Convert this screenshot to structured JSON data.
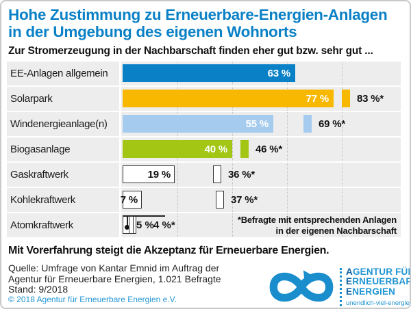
{
  "header": {
    "title_line1": "Hohe Zustimmung zu Erneuerbare-Energien-Anlagen",
    "title_line2": "in der Umgebung des eigenen Wohnorts",
    "subtitle": "Zur Stromerzeugung in der Nachbarschaft finden eher gut bzw. sehr gut ..."
  },
  "chart_data": {
    "type": "bar",
    "orientation": "horizontal",
    "unit": "%",
    "xlim": [
      0,
      100
    ],
    "gridline_step_percent": 20,
    "grid": true,
    "categories": [
      "EE-Anlagen allgemein",
      "Solarpark",
      "Windenergieanlage(n)",
      "Biogasanlage",
      "Gaskraftwerk",
      "Kohlekraftwerk",
      "Atomkraftwerk"
    ],
    "series": [
      {
        "name": "",
        "values": [
          63,
          77,
          55,
          40,
          19,
          7,
          5
        ]
      },
      {
        "name": "Befragte mit entsprechenden Anlagen in der eigenen Nachbarschaft",
        "values": [
          null,
          83,
          69,
          46,
          36,
          37,
          4
        ]
      }
    ],
    "note_line1": "*Befragte mit entsprechenden Anlagen",
    "note_line2": "in der eigenen Nachbarschaft",
    "rows": [
      {
        "label": "EE-Anlagen allgemein",
        "value": 63,
        "value_label": "63 %",
        "color": "#0a81c6",
        "style": "fill"
      },
      {
        "label": "Solarpark",
        "value": 77,
        "value_label": "77 %",
        "marker_value": 83,
        "marker_label": "83 %*",
        "color": "#f9b800",
        "style": "fill"
      },
      {
        "label": "Windenergieanlage(n)",
        "value": 55,
        "value_label": "55 %",
        "marker_value": 69,
        "marker_label": "69 %*",
        "color": "#a5cbee",
        "style": "fill"
      },
      {
        "label": "Biogasanlage",
        "value": 40,
        "value_label": "40 %",
        "marker_value": 46,
        "marker_label": "46 %*",
        "color": "#a2c613",
        "style": "fill"
      },
      {
        "label": "Gaskraftwerk",
        "value": 19,
        "value_label": "19 %",
        "marker_value": 36,
        "marker_label": "36 %*",
        "color": "#ffffff",
        "style": "outline"
      },
      {
        "label": "Kohlekraftwerk",
        "value": 7,
        "value_label": "7 %",
        "marker_value": 37,
        "marker_label": "37 %*",
        "color": "#ffffff",
        "style": "outline"
      },
      {
        "label": "Atomkraftwerk",
        "value": 5,
        "value_label": "5 %",
        "marker_value": 4,
        "marker_label": "4 %*",
        "color": "#ffffff",
        "style": "outline",
        "special": "callout"
      }
    ]
  },
  "statement": "Mit Vorerfahrung steigt die Akzeptanz für Erneuerbare Energien.",
  "source": {
    "line1": "Quelle: Umfrage von Kantar Emnid im Auftrag der",
    "line2": "Agentur für Erneuerbare Energien, 1.021 Befragte",
    "line3": "Stand: 9/2018",
    "copyright": "© 2018 Agentur für Erneuerbare Energien e.V."
  },
  "logo": {
    "lines": [
      {
        "initial": "A",
        "rest": "GENTUR FÜR"
      },
      {
        "initial": "E",
        "rest": "RNEUERBARE"
      },
      {
        "initial": "E",
        "rest": "NERGIEN"
      }
    ],
    "website": "unendlich-viel-energie.de"
  },
  "colors": {
    "title_blue": "#0a81c6",
    "bar_blue": "#0a81c6",
    "bar_yellow": "#f9b800",
    "bar_lightblue": "#a5cbee",
    "bar_green": "#a2c613",
    "row_background": "#ededed",
    "logo_blue": "#1a8dcd",
    "copyright_blue": "#2196d3"
  }
}
